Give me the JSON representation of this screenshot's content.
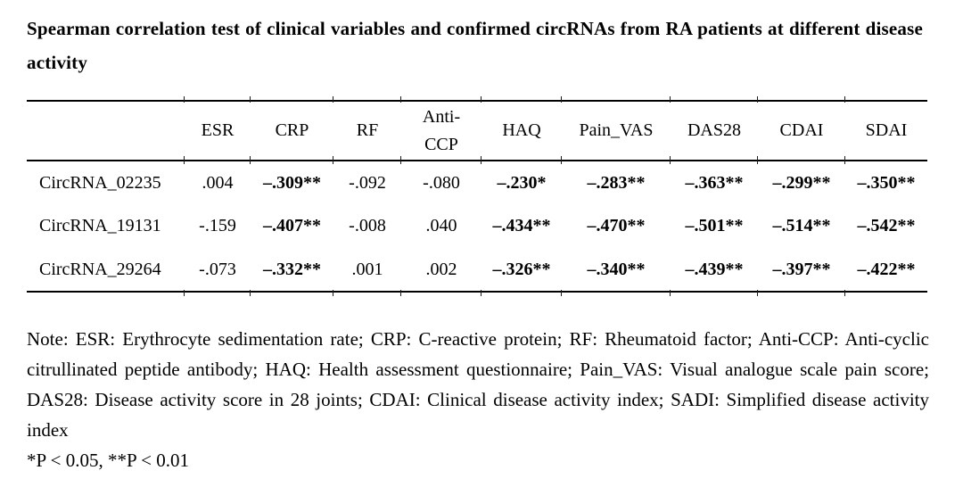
{
  "title": "Spearman correlation test of clinical variables and confirmed circRNAs from RA patients at different disease activity",
  "table": {
    "headers": [
      "",
      "ESR",
      "CRP",
      "RF",
      "Anti-CCP",
      "HAQ",
      "Pain_VAS",
      "DAS28",
      "CDAI",
      "SDAI"
    ],
    "rows": [
      {
        "label": "CircRNA_02235",
        "values": [
          ".004",
          "–.309**",
          "-.092",
          "-.080",
          "–.230*",
          "–.283**",
          "–.363**",
          "–.299**",
          "–.350**"
        ],
        "bold": [
          false,
          true,
          false,
          false,
          true,
          true,
          true,
          true,
          true
        ]
      },
      {
        "label": "CircRNA_19131",
        "values": [
          "-.159",
          "–.407**",
          "-.008",
          ".040",
          "–.434**",
          "–.470**",
          "–.501**",
          "–.514**",
          "–.542**"
        ],
        "bold": [
          false,
          true,
          false,
          false,
          true,
          true,
          true,
          true,
          true
        ]
      },
      {
        "label": "CircRNA_29264",
        "values": [
          "-.073",
          "–.332**",
          ".001",
          ".002",
          "–.326**",
          "–.340**",
          "–.439**",
          "–.397**",
          "–.422**"
        ],
        "bold": [
          false,
          true,
          false,
          false,
          true,
          true,
          true,
          true,
          true
        ]
      }
    ]
  },
  "note": "Note: ESR: Erythrocyte sedimentation rate; CRP: C-reactive protein; RF: Rheumatoid factor; Anti-CCP: Anti-cyclic citrullinated peptide antibody; HAQ: Health assessment questionnaire; Pain_VAS: Visual analogue scale pain score; DAS28: Disease activity score in 28 joints; CDAI: Clinical disease activity index; SADI: Simplified disease activity index",
  "significance": "*P < 0.05, **P < 0.01"
}
